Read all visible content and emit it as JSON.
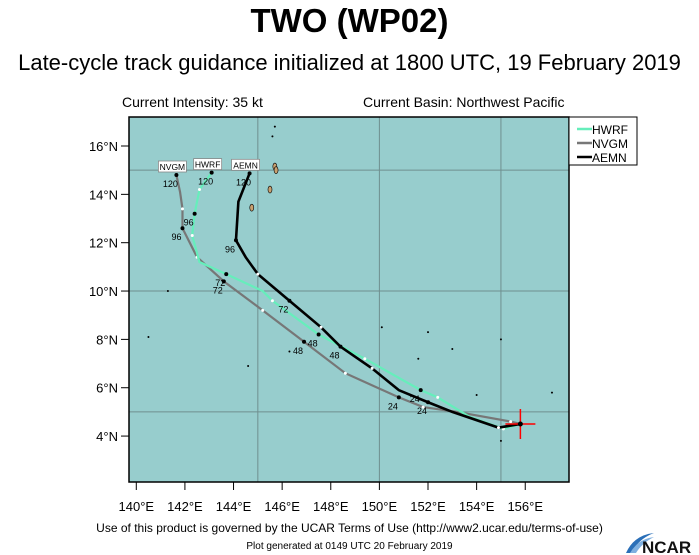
{
  "header": {
    "title": "TWO (WP02)",
    "subtitle": "Late-cycle track guidance initialized at 1800 UTC, 19 February 2019",
    "intensity": "Current Intensity: 35 kt",
    "basin": "Current Basin: Northwest Pacific"
  },
  "footer": {
    "terms": "Use of this product is governed by the UCAR Terms of Use (http://www2.ucar.edu/terms-of-use)",
    "generated": "Plot generated at 0149 UTC   20 February 2019",
    "logo_text": "NCAR"
  },
  "chart_data": {
    "type": "line",
    "xlim": [
      139.7,
      157.8
    ],
    "ylim": [
      2.1,
      17.2
    ],
    "x_ticks": [
      "140°E",
      "142°E",
      "144°E",
      "146°E",
      "148°E",
      "150°E",
      "152°E",
      "154°E",
      "156°E"
    ],
    "y_ticks": [
      "4°N",
      "6°N",
      "8°N",
      "10°N",
      "12°N",
      "14°N",
      "16°N"
    ],
    "x_tick_values": [
      140,
      142,
      144,
      146,
      148,
      150,
      152,
      154,
      156
    ],
    "y_tick_values": [
      4,
      6,
      8,
      10,
      12,
      14,
      16
    ],
    "grid_values_lon": [
      145,
      150,
      155
    ],
    "grid_values_lat": [
      5,
      10,
      15
    ],
    "grid": true,
    "background_color": "#97cdcd",
    "land_color": "#c8a070",
    "legend_position": "top-right",
    "current_position": {
      "lon": 155.8,
      "lat": 4.5,
      "color": "#ff0000"
    },
    "series": [
      {
        "name": "HWRF",
        "color": "#66eebb",
        "points": [
          [
            155.8,
            4.5
          ],
          [
            155.1,
            4.3
          ],
          [
            153.7,
            4.8
          ],
          [
            152.4,
            5.6
          ],
          [
            151.7,
            5.9
          ],
          [
            149.4,
            7.2
          ],
          [
            147.5,
            8.2
          ],
          [
            145.6,
            9.6
          ],
          [
            145.2,
            10.0
          ],
          [
            143.7,
            10.7
          ],
          [
            142.6,
            11.2
          ],
          [
            142.3,
            12.3
          ],
          [
            142.4,
            13.2
          ],
          [
            142.6,
            14.2
          ],
          [
            143.1,
            14.9
          ]
        ],
        "labels": [
          {
            "hour": "24",
            "lon": 151.7,
            "lat": 5.9
          },
          {
            "hour": "48",
            "lon": 147.5,
            "lat": 8.2
          },
          {
            "hour": "72",
            "lon": 143.7,
            "lat": 10.7
          },
          {
            "hour": "96",
            "lon": 142.4,
            "lat": 13.2
          },
          {
            "hour": "120",
            "lon": 143.1,
            "lat": 14.9
          }
        ]
      },
      {
        "name": "NVGM",
        "color": "#777777",
        "points": [
          [
            155.8,
            4.5
          ],
          [
            155.4,
            4.6
          ],
          [
            153.2,
            5.0
          ],
          [
            151.8,
            5.2
          ],
          [
            150.8,
            5.6
          ],
          [
            148.6,
            6.6
          ],
          [
            146.9,
            7.9
          ],
          [
            145.2,
            9.2
          ],
          [
            143.6,
            10.4
          ],
          [
            142.5,
            11.4
          ],
          [
            141.9,
            12.6
          ],
          [
            141.9,
            13.4
          ],
          [
            141.8,
            14.1
          ],
          [
            141.65,
            14.8
          ]
        ],
        "labels": [
          {
            "hour": "24",
            "lon": 150.8,
            "lat": 5.6
          },
          {
            "hour": "48",
            "lon": 146.9,
            "lat": 7.9
          },
          {
            "hour": "72",
            "lon": 143.6,
            "lat": 10.4
          },
          {
            "hour": "96",
            "lon": 141.9,
            "lat": 12.6
          },
          {
            "hour": "120",
            "lon": 141.65,
            "lat": 14.8
          }
        ]
      },
      {
        "name": "AEMN",
        "color": "#000000",
        "points": [
          [
            155.8,
            4.5
          ],
          [
            154.9,
            4.35
          ],
          [
            153.0,
            5.0
          ],
          [
            152.0,
            5.4
          ],
          [
            150.8,
            5.9
          ],
          [
            149.7,
            6.8
          ],
          [
            148.4,
            7.7
          ],
          [
            147.6,
            8.5
          ],
          [
            146.3,
            9.6
          ],
          [
            145.0,
            10.7
          ],
          [
            144.5,
            11.4
          ],
          [
            144.1,
            12.1
          ],
          [
            144.2,
            13.7
          ],
          [
            144.66,
            14.87
          ]
        ],
        "labels": [
          {
            "hour": "24",
            "lon": 152.0,
            "lat": 5.4
          },
          {
            "hour": "48",
            "lon": 148.4,
            "lat": 7.7
          },
          {
            "hour": "72",
            "lon": 146.3,
            "lat": 9.6
          },
          {
            "hour": "96",
            "lon": 144.1,
            "lat": 12.1
          },
          {
            "hour": "120",
            "lon": 144.66,
            "lat": 14.87
          }
        ]
      }
    ]
  }
}
